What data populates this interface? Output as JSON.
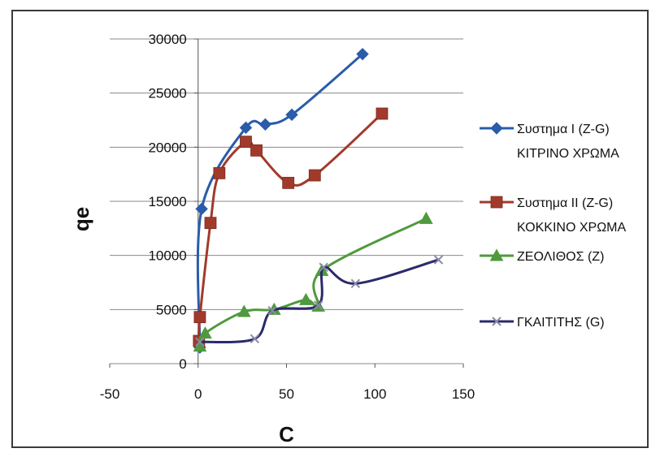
{
  "chart_data": {
    "type": "scatter",
    "title": "",
    "xlabel": "C",
    "ylabel": "qe",
    "xlim": [
      -50,
      150
    ],
    "ylim": [
      0,
      30000
    ],
    "xticks": [
      -50,
      0,
      50,
      100,
      150
    ],
    "yticks": [
      0,
      5000,
      10000,
      15000,
      20000,
      25000,
      30000
    ],
    "grid": "horizontal",
    "legend_position": "right",
    "series": [
      {
        "name_lines": [
          "Συστημα I (Z-G)",
          "ΚΙΤΡΙΝΟ ΧΡΩΜΑ"
        ],
        "color": "#2a5caa",
        "marker": "diamond",
        "x": [
          1,
          2,
          27,
          38,
          53,
          93
        ],
        "y": [
          1500,
          14300,
          21800,
          22100,
          23000,
          28600
        ]
      },
      {
        "name_lines": [
          "Συστημα II (Z-G)",
          "ΚΟΚΚΙΝΟ ΧΡΩΜΑ"
        ],
        "color": "#a23a2c",
        "marker": "square",
        "x": [
          0.5,
          1,
          7,
          12,
          27,
          33,
          51,
          66,
          104
        ],
        "y": [
          2100,
          4300,
          13000,
          17600,
          20500,
          19700,
          16700,
          17400,
          23100
        ]
      },
      {
        "name_lines": [
          "ΖΕΟΛΙΘΟΣ (Ζ)"
        ],
        "color": "#4f9a3c",
        "marker": "triangle",
        "x": [
          1,
          4,
          26,
          43,
          61,
          68,
          70,
          129
        ],
        "y": [
          1600,
          2800,
          4800,
          5000,
          5900,
          5300,
          8600,
          13400
        ]
      },
      {
        "name_lines": [
          "ΓΚΑΙΤΙΤΗΣ (G)"
        ],
        "color": "#2b2a6b",
        "marker": "x",
        "x": [
          1,
          32,
          42,
          68,
          71,
          89,
          136
        ],
        "y": [
          2000,
          2300,
          4900,
          5400,
          8900,
          7400,
          9600
        ]
      }
    ]
  }
}
